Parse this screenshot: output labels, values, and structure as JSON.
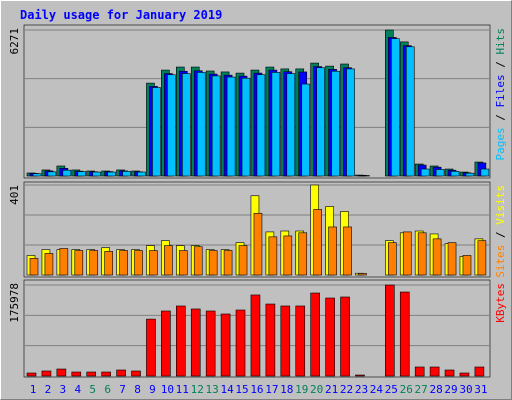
{
  "title": "Daily usage for January 2019",
  "chart_data": [
    {
      "type": "bar",
      "ylim": [
        0,
        6271
      ],
      "yticks": [
        6271
      ],
      "series": [
        {
          "name": "Hits",
          "color": "#00805c",
          "values": [
            130,
            260,
            430,
            260,
            215,
            215,
            260,
            215,
            3990,
            4550,
            4680,
            4680,
            4510,
            4470,
            4420,
            4550,
            4680,
            4600,
            4600,
            4850,
            4720,
            4810,
            40,
            0,
            6271,
            5760,
            515,
            430,
            300,
            170,
            600
          ]
        },
        {
          "name": "Files",
          "color": "#0000ff",
          "values": [
            110,
            220,
            330,
            210,
            180,
            190,
            220,
            180,
            3850,
            4400,
            4500,
            4520,
            4380,
            4330,
            4290,
            4420,
            4550,
            4480,
            4470,
            4700,
            4580,
            4650,
            30,
            0,
            5950,
            5600,
            470,
            380,
            250,
            140,
            560
          ]
        },
        {
          "name": "Pages",
          "color": "#00c0ff",
          "values": [
            100,
            180,
            250,
            190,
            170,
            170,
            200,
            170,
            3800,
            4350,
            4400,
            4450,
            4300,
            4250,
            4200,
            4350,
            4450,
            4400,
            3950,
            4650,
            4500,
            4600,
            20,
            0,
            5900,
            5550,
            300,
            280,
            200,
            120,
            300
          ]
        }
      ]
    },
    {
      "type": "bar",
      "ylim": [
        0,
        401
      ],
      "yticks": [
        401
      ],
      "series": [
        {
          "name": "Visits",
          "color": "#ffff00",
          "values": [
            87,
            113,
            113,
            113,
            113,
            122,
            113,
            113,
            131,
            153,
            131,
            131,
            113,
            113,
            144,
            353,
            192,
            196,
            196,
            401,
            305,
            283,
            8,
            0,
            153,
            188,
            196,
            183,
            140,
            83,
            161
          ]
        },
        {
          "name": "Sites",
          "color": "#ff8000",
          "values": [
            74,
            96,
            118,
            109,
            109,
            105,
            109,
            109,
            109,
            131,
            109,
            126,
            109,
            109,
            131,
            275,
            170,
            174,
            188,
            292,
            214,
            214,
            7,
            0,
            144,
            192,
            188,
            161,
            144,
            87,
            153
          ]
        }
      ]
    },
    {
      "type": "bar",
      "ylim": [
        0,
        175978
      ],
      "yticks": [
        175978
      ],
      "categories": [
        "1",
        "2",
        "3",
        "4",
        "5",
        "6",
        "7",
        "8",
        "9",
        "10",
        "11",
        "12",
        "13",
        "14",
        "15",
        "16",
        "17",
        "18",
        "19",
        "20",
        "21",
        "22",
        "23",
        "24",
        "25",
        "26",
        "27",
        "28",
        "29",
        "30",
        "31"
      ],
      "category_colors": [
        "#0000ff",
        "#0000ff",
        "#0000ff",
        "#0000ff",
        "#00805c",
        "#00805c",
        "#0000ff",
        "#0000ff",
        "#0000ff",
        "#0000ff",
        "#0000ff",
        "#00805c",
        "#00805c",
        "#0000ff",
        "#0000ff",
        "#0000ff",
        "#0000ff",
        "#0000ff",
        "#00805c",
        "#00805c",
        "#0000ff",
        "#0000ff",
        "#0000ff",
        "#0000ff",
        "#0000ff",
        "#00805c",
        "#00805c",
        "#0000ff",
        "#0000ff",
        "#0000ff",
        "#0000ff"
      ],
      "series": [
        {
          "name": "KBytes",
          "color": "#ff0000",
          "values": [
            5800,
            9700,
            13500,
            7700,
            7700,
            7700,
            11600,
            9700,
            110000,
            125700,
            135400,
            129600,
            125700,
            119900,
            127600,
            156700,
            139200,
            135400,
            135400,
            160500,
            150800,
            152800,
            1900,
            0,
            175978,
            162400,
            17400,
            17400,
            11600,
            5800,
            17400
          ]
        }
      ]
    }
  ]
}
